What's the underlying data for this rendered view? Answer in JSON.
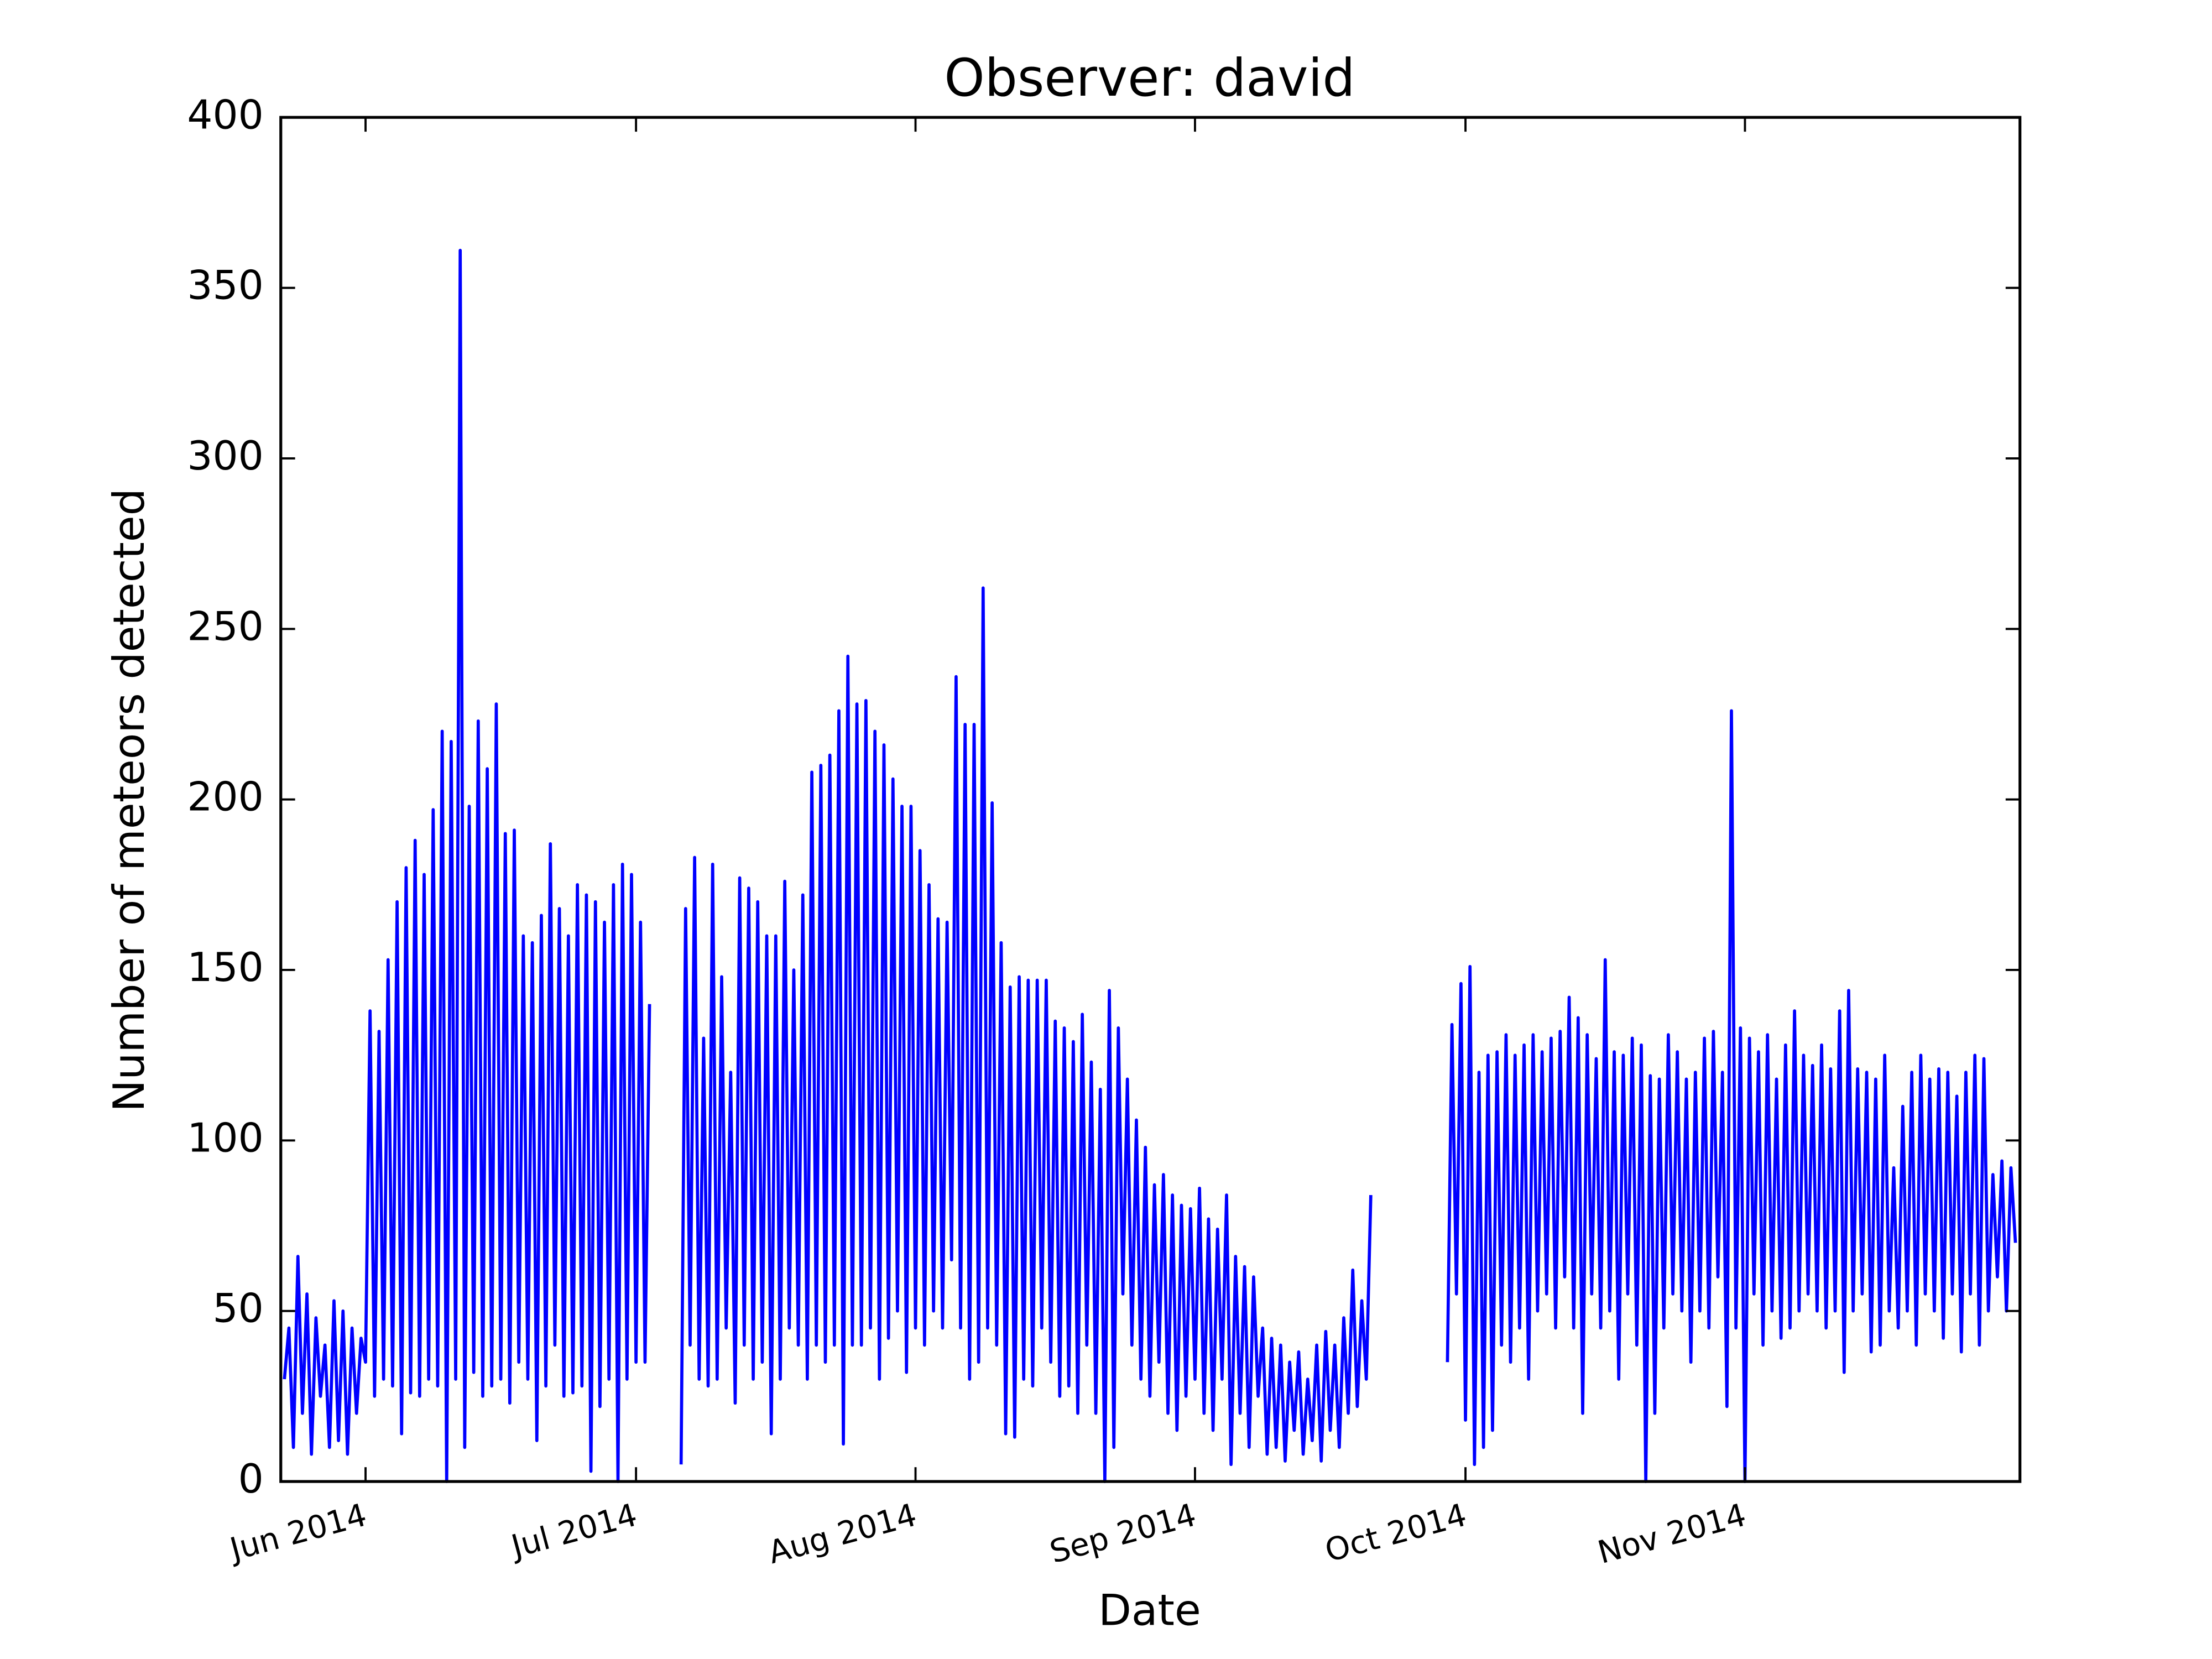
{
  "chart_data": {
    "type": "line",
    "title": "Observer: david",
    "xlabel": "Date",
    "ylabel": "Number of meteors detected",
    "color": "#0000ff",
    "xlim": [
      -9.4,
      183.5
    ],
    "ylim": [
      0,
      400
    ],
    "xticks": [
      {
        "value": 0,
        "label": "Jun 2014"
      },
      {
        "value": 30,
        "label": "Jul 2014"
      },
      {
        "value": 61,
        "label": "Aug 2014"
      },
      {
        "value": 92,
        "label": "Sep 2014"
      },
      {
        "value": 122,
        "label": "Oct 2014"
      },
      {
        "value": 153,
        "label": "Nov 2014"
      }
    ],
    "yticks": [
      0,
      50,
      100,
      150,
      200,
      250,
      300,
      350,
      400
    ],
    "x": [
      -9,
      -8.5,
      -8,
      -7.5,
      -7,
      -6.5,
      -6,
      -5.5,
      -5,
      -4.5,
      -4,
      -3.5,
      -3,
      -2.5,
      -2,
      -1.5,
      -1,
      -0.5,
      0,
      0.5,
      1,
      1.5,
      2,
      2.5,
      3,
      3.5,
      4,
      4.5,
      5,
      5.5,
      6,
      6.5,
      7,
      7.5,
      8,
      8.5,
      9,
      9.5,
      10,
      10.5,
      11,
      11.5,
      12,
      12.5,
      13,
      13.5,
      14,
      14.5,
      15,
      15.5,
      16,
      16.5,
      17,
      17.5,
      18,
      18.5,
      19,
      19.5,
      20,
      20.5,
      21,
      21.5,
      22,
      22.5,
      23,
      23.5,
      24,
      24.5,
      25,
      25.5,
      26,
      26.5,
      27,
      27.5,
      28,
      28.5,
      29,
      29.5,
      30,
      30.5,
      31,
      31.5,
      32,
      35,
      35.5,
      36,
      36.5,
      37,
      37.5,
      38,
      38.5,
      39,
      39.5,
      40,
      40.5,
      41,
      41.5,
      42,
      42.5,
      43,
      43.5,
      44,
      44.5,
      45,
      45.5,
      46,
      46.5,
      47,
      47.5,
      48,
      48.5,
      49,
      49.5,
      50,
      50.5,
      51,
      51.5,
      52,
      52.5,
      53,
      53.5,
      54,
      54.5,
      55,
      55.5,
      56,
      56.5,
      57,
      57.5,
      58,
      58.5,
      59,
      59.5,
      60,
      60.5,
      61,
      61.5,
      62,
      62.5,
      63,
      63.5,
      64,
      64.5,
      65,
      65.5,
      66,
      66.5,
      67,
      67.5,
      68,
      68.5,
      69,
      69.5,
      70,
      70.5,
      71,
      71.5,
      72,
      72.5,
      73,
      73.5,
      74,
      74.5,
      75,
      75.5,
      76,
      76.5,
      77,
      77.5,
      78,
      78.5,
      79,
      79.5,
      80,
      80.5,
      81,
      81.5,
      82,
      82.5,
      83,
      83.5,
      84,
      84.5,
      85,
      85.5,
      86,
      86.5,
      87,
      87.5,
      88,
      88.5,
      89,
      89.5,
      90,
      90.5,
      91,
      91.5,
      92,
      92.5,
      93,
      93.5,
      94,
      94.5,
      95,
      95.5,
      96,
      96.5,
      97,
      97.5,
      98,
      98.5,
      99,
      99.5,
      100,
      100.5,
      101,
      101.5,
      102,
      102.5,
      103,
      103.5,
      104,
      104.5,
      105,
      105.5,
      106,
      106.5,
      107,
      107.5,
      108,
      108.5,
      109,
      109.5,
      110,
      110.5,
      111,
      111.5,
      112,
      120,
      120.5,
      121,
      121.5,
      122,
      122.5,
      123,
      123.5,
      124,
      124.5,
      125,
      125.5,
      126,
      126.5,
      127,
      127.5,
      128,
      128.5,
      129,
      129.5,
      130,
      130.5,
      131,
      131.5,
      132,
      132.5,
      133,
      133.5,
      134,
      134.5,
      135,
      135.5,
      136,
      136.5,
      137,
      137.5,
      138,
      138.5,
      139,
      139.5,
      140,
      140.5,
      141,
      141.5,
      142,
      142.5,
      143,
      143.5,
      144,
      144.5,
      145,
      145.5,
      146,
      146.5,
      147,
      147.5,
      148,
      148.5,
      149,
      149.5,
      150,
      150.5,
      151,
      151.5,
      152,
      152.5,
      153,
      153.5,
      154,
      154.5,
      155,
      155.5,
      156,
      156.5,
      157,
      157.5,
      158,
      158.5,
      159,
      159.5,
      160,
      160.5,
      161,
      161.5,
      162,
      162.5,
      163,
      163.5,
      164,
      164.5,
      165,
      165.5,
      166,
      166.5,
      167,
      167.5,
      168,
      168.5,
      169,
      169.5,
      170,
      170.5,
      171,
      171.5,
      172,
      172.5,
      173,
      173.5,
      174,
      174.5,
      175,
      175.5,
      176,
      176.5,
      177,
      177.5,
      178,
      178.5,
      179,
      179.5,
      180,
      180.5,
      181,
      181.5,
      182,
      182.5,
      183
    ],
    "values": [
      30,
      45,
      10,
      66,
      20,
      55,
      8,
      48,
      25,
      40,
      10,
      53,
      12,
      50,
      8,
      45,
      20,
      42,
      35,
      138,
      25,
      132,
      30,
      153,
      28,
      170,
      14,
      180,
      26,
      188,
      25,
      178,
      30,
      197,
      28,
      220,
      0,
      217,
      30,
      361,
      10,
      198,
      32,
      223,
      25,
      209,
      28,
      228,
      30,
      190,
      23,
      191,
      35,
      160,
      30,
      158,
      12,
      166,
      28,
      187,
      40,
      168,
      25,
      160,
      26,
      175,
      28,
      172,
      3,
      170,
      22,
      164,
      30,
      175,
      0,
      181,
      30,
      178,
      35,
      164,
      35,
      140,
      null,
      5,
      168,
      40,
      183,
      30,
      130,
      28,
      181,
      30,
      148,
      45,
      120,
      23,
      177,
      40,
      174,
      30,
      170,
      35,
      160,
      14,
      160,
      30,
      176,
      45,
      150,
      40,
      172,
      30,
      208,
      40,
      210,
      35,
      213,
      40,
      226,
      11,
      242,
      40,
      228,
      40,
      229,
      45,
      220,
      30,
      216,
      42,
      206,
      50,
      198,
      32,
      198,
      45,
      185,
      40,
      175,
      50,
      165,
      45,
      164,
      65,
      236,
      45,
      222,
      30,
      222,
      35,
      262,
      45,
      199,
      40,
      158,
      14,
      145,
      13,
      148,
      30,
      147,
      28,
      147,
      45,
      147,
      35,
      135,
      25,
      133,
      28,
      129,
      20,
      137,
      40,
      123,
      20,
      115,
      0,
      144,
      10,
      133,
      55,
      118,
      40,
      106,
      30,
      98,
      25,
      87,
      35,
      90,
      20,
      84,
      15,
      81,
      25,
      80,
      30,
      86,
      20,
      77,
      15,
      74,
      30,
      84,
      5,
      66,
      20,
      63,
      10,
      60,
      25,
      45,
      8,
      42,
      10,
      40,
      6,
      35,
      15,
      38,
      8,
      30,
      12,
      40,
      6,
      44,
      15,
      40,
      10,
      48,
      20,
      62,
      22,
      53,
      30,
      84,
      null,
      35,
      134,
      55,
      146,
      18,
      151,
      5,
      120,
      10,
      125,
      15,
      126,
      40,
      131,
      35,
      125,
      45,
      128,
      30,
      131,
      50,
      126,
      55,
      130,
      45,
      132,
      60,
      142,
      45,
      136,
      20,
      131,
      55,
      124,
      45,
      153,
      50,
      126,
      30,
      125,
      55,
      130,
      40,
      128,
      0,
      119,
      20,
      118,
      45,
      131,
      55,
      126,
      50,
      118,
      35,
      120,
      50,
      130,
      45,
      132,
      60,
      120,
      22,
      226,
      45,
      133,
      0,
      130,
      55,
      126,
      40,
      131,
      50,
      118,
      42,
      128,
      45,
      138,
      50,
      125,
      55,
      122,
      50,
      128,
      45,
      121,
      50,
      138,
      32,
      144,
      50,
      121,
      55,
      120,
      38,
      118,
      40,
      125,
      50,
      92,
      45,
      110,
      50,
      120,
      40,
      125,
      55,
      118,
      50,
      121,
      42,
      120,
      55,
      113,
      38,
      120,
      55,
      125,
      40,
      124,
      50,
      90,
      60,
      94,
      50,
      92,
      70
    ]
  }
}
